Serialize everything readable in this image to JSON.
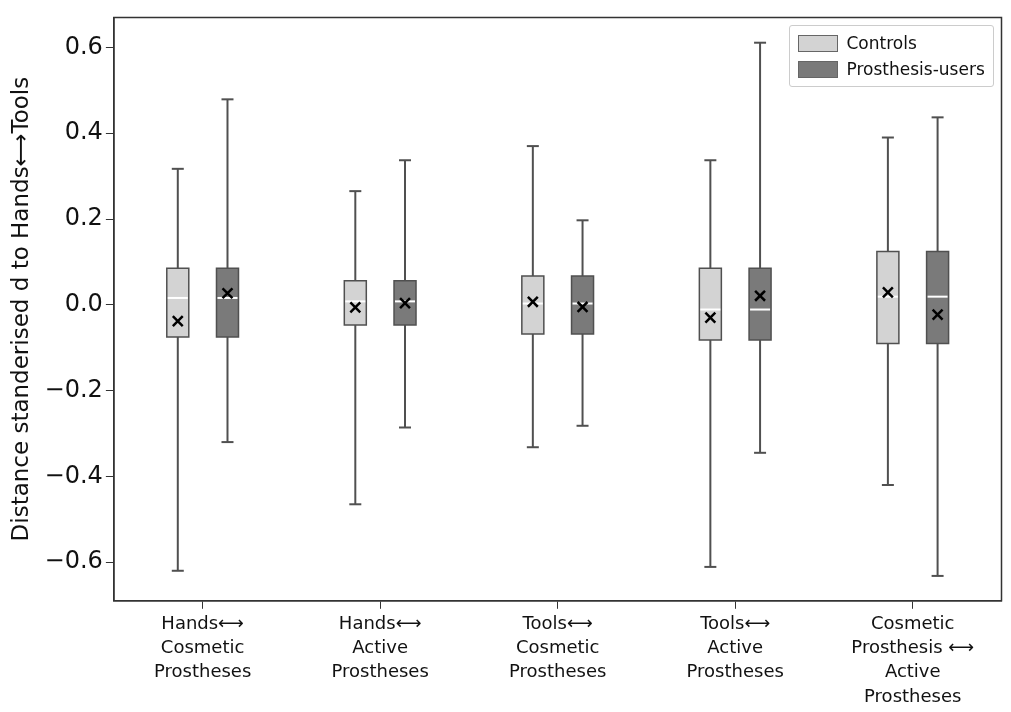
{
  "chart_data": {
    "type": "box",
    "ylabel": "Distance standerised d to Hands⟷Tools",
    "categories": [
      "Hands⟷\nCosmetic\nProstheses",
      "Hands⟷\nActive\nProstheses",
      "Tools⟷\nCosmetic\nProstheses",
      "Tools⟷\nActive\nProstheses",
      "Cosmetic\nProsthesis ⟷\nActive\nProstheses"
    ],
    "series": [
      {
        "name": "Controls",
        "color": "#d3d3d3",
        "boxes": [
          {
            "low": -0.62,
            "q1": -0.075,
            "median": 0.016,
            "q3": 0.085,
            "high": 0.317,
            "mean": -0.038
          },
          {
            "low": -0.465,
            "q1": -0.047,
            "median": 0.008,
            "q3": 0.056,
            "high": 0.265,
            "mean": -0.006
          },
          {
            "low": -0.332,
            "q1": -0.068,
            "median": 0.003,
            "q3": 0.067,
            "high": 0.37,
            "mean": 0.007
          },
          {
            "low": -0.611,
            "q1": -0.082,
            "median": -0.011,
            "q3": 0.085,
            "high": 0.337,
            "mean": -0.03
          },
          {
            "low": -0.42,
            "q1": -0.09,
            "median": 0.019,
            "q3": 0.124,
            "high": 0.39,
            "mean": 0.029
          }
        ]
      },
      {
        "name": "Prosthesis-users",
        "color": "#7a7a7a",
        "boxes": [
          {
            "low": -0.32,
            "q1": -0.075,
            "median": 0.016,
            "q3": 0.085,
            "high": 0.479,
            "mean": 0.027
          },
          {
            "low": -0.286,
            "q1": -0.047,
            "median": 0.008,
            "q3": 0.056,
            "high": 0.337,
            "mean": 0.004
          },
          {
            "low": -0.282,
            "q1": -0.068,
            "median": 0.003,
            "q3": 0.067,
            "high": 0.197,
            "mean": -0.005
          },
          {
            "low": -0.345,
            "q1": -0.082,
            "median": -0.011,
            "q3": 0.085,
            "high": 0.611,
            "mean": 0.021
          },
          {
            "low": -0.632,
            "q1": -0.09,
            "median": 0.019,
            "q3": 0.124,
            "high": 0.437,
            "mean": -0.023
          }
        ]
      }
    ],
    "ylim": [
      -0.69,
      0.67
    ],
    "yticks": [
      {
        "value": -0.6,
        "label": "−0.6"
      },
      {
        "value": -0.4,
        "label": "−0.4"
      },
      {
        "value": -0.2,
        "label": "−0.2"
      },
      {
        "value": 0,
        "label": "0.0"
      },
      {
        "value": 0.2,
        "label": "0.2"
      },
      {
        "value": 0.4,
        "label": "0.4"
      },
      {
        "value": 0.6,
        "label": "0.6"
      }
    ],
    "grid": false,
    "legend": "top right",
    "marker": "cross"
  }
}
